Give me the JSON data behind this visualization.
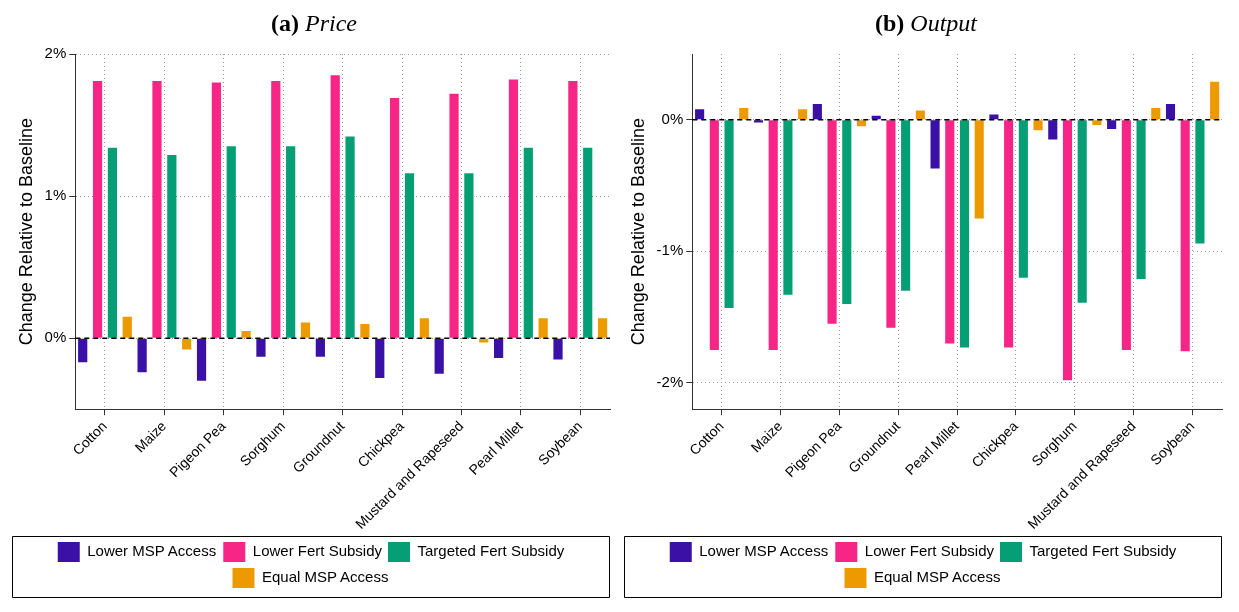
{
  "chart_data": [
    {
      "type": "bar",
      "title": "(a) Price",
      "ylabel": "Change Relative to Baseline",
      "categories": [
        "Cotton",
        "Maize",
        "Pigeon Pea",
        "Sorghum",
        "Groundnut",
        "Chickpea",
        "Mustard and Rapeseed",
        "Pearl Millet",
        "Soybean"
      ],
      "series": [
        {
          "name": "Lower MSP Access",
          "color": "#3a10a6",
          "values": [
            -0.17,
            -0.24,
            -0.3,
            -0.13,
            -0.13,
            -0.28,
            -0.25,
            -0.14,
            -0.15
          ]
        },
        {
          "name": "Lower Fert Subsidy",
          "color": "#f72585",
          "values": [
            1.81,
            1.81,
            1.8,
            1.81,
            1.85,
            1.69,
            1.72,
            1.82,
            1.81
          ]
        },
        {
          "name": "Targeted Fert Subsidy",
          "color": "#069e74",
          "values": [
            1.34,
            1.29,
            1.35,
            1.35,
            1.42,
            1.16,
            1.16,
            1.34,
            1.34
          ]
        },
        {
          "name": "Equal MSP Access",
          "color": "#ec9a00",
          "values": [
            0.15,
            -0.08,
            0.05,
            0.11,
            0.1,
            0.14,
            -0.03,
            0.14,
            0.14
          ]
        }
      ],
      "ylim": [
        -0.5,
        2
      ],
      "yticks": [
        {
          "value": 0,
          "label": "0%"
        },
        {
          "value": 1,
          "label": "1%"
        },
        {
          "value": 2,
          "label": "2%"
        }
      ],
      "grid": true,
      "legend": "bottom",
      "ref_lines": [
        {
          "axis": "y",
          "value": 0,
          "color": "#000000",
          "line_style": "dashed"
        }
      ]
    },
    {
      "type": "bar",
      "title": "(b) Output",
      "ylabel": "Change Relative to Baseline",
      "categories": [
        "Cotton",
        "Maize",
        "Pigeon Pea",
        "Groundnut",
        "Pearl Millet",
        "Chickpea",
        "Sorghum",
        "Mustard and Rapeseed",
        "Soybean"
      ],
      "series": [
        {
          "name": "Lower MSP Access",
          "color": "#3a10a6",
          "values": [
            0.08,
            -0.02,
            0.12,
            0.03,
            -0.37,
            0.04,
            -0.15,
            -0.07,
            0.12
          ]
        },
        {
          "name": "Lower Fert Subsidy",
          "color": "#f72585",
          "values": [
            -1.75,
            -1.75,
            -1.55,
            -1.58,
            -1.7,
            -1.73,
            -1.98,
            -1.75,
            -1.76
          ]
        },
        {
          "name": "Targeted Fert Subsidy",
          "color": "#069e74",
          "values": [
            -1.43,
            -1.33,
            -1.4,
            -1.3,
            -1.73,
            -1.2,
            -1.39,
            -1.21,
            -0.94
          ]
        },
        {
          "name": "Equal MSP Access",
          "color": "#ec9a00",
          "values": [
            0.09,
            0.08,
            -0.05,
            0.07,
            -0.75,
            -0.08,
            -0.04,
            0.09,
            0.29
          ]
        }
      ],
      "ylim": [
        -2.2,
        0.5
      ],
      "yticks": [
        {
          "value": -2,
          "label": "-2%"
        },
        {
          "value": -1,
          "label": "-1%"
        },
        {
          "value": 0,
          "label": "0%"
        }
      ],
      "grid": true,
      "legend": "bottom",
      "ref_lines": [
        {
          "axis": "y",
          "value": 0,
          "color": "#000000",
          "line_style": "dashed"
        }
      ]
    }
  ]
}
